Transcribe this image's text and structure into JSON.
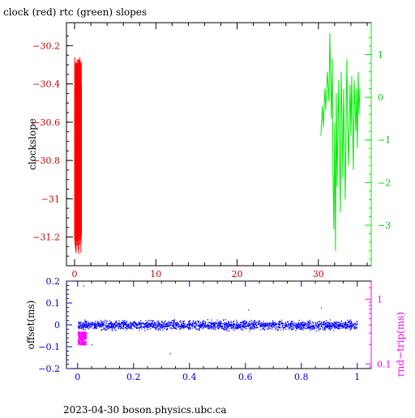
{
  "chart_data": [
    {
      "type": "line",
      "title": "clock (red) rtc (green) slopes",
      "xlabel": "",
      "ylabel": "clockslope",
      "xlim": [
        -1,
        36.5
      ],
      "ylim": [
        -31.35,
        -30.08
      ],
      "y2lim": [
        -3.95,
        1.75
      ],
      "x_ticks": [
        0,
        10,
        20,
        30
      ],
      "y_ticks": [
        -30.2,
        -30.4,
        -30.6,
        -30.8,
        -31,
        -31.2
      ],
      "y_tick_labels": [
        "−30.2",
        "−30.4",
        "−30.6",
        "−30.8",
        "−31",
        "−31.2"
      ],
      "y2_ticks": [
        1,
        0,
        -1,
        -2,
        -3
      ],
      "y2_tick_labels": [
        "1",
        "0",
        "−1",
        "−2",
        "−3"
      ],
      "grid": false,
      "series": [
        {
          "color": "#ff0000",
          "axis": "left",
          "x_range": [
            0,
            0.85
          ],
          "y_min": -31.29,
          "y_max": -30.26
        },
        {
          "color": "#00ee00",
          "axis": "right",
          "points": [
            [
              30.3,
              -0.9
            ],
            [
              30.5,
              -0.2
            ],
            [
              30.6,
              -0.7
            ],
            [
              30.8,
              0.2
            ],
            [
              30.9,
              -0.3
            ],
            [
              31.1,
              0.6
            ],
            [
              31.3,
              -0.1
            ],
            [
              31.4,
              1.5
            ],
            [
              31.6,
              -0.5
            ],
            [
              31.7,
              0.9
            ],
            [
              31.8,
              -1.8
            ],
            [
              31.9,
              -3.1
            ],
            [
              32.0,
              -0.6
            ],
            [
              32.1,
              -3.6
            ],
            [
              32.2,
              0.1
            ],
            [
              32.3,
              -2.1
            ],
            [
              32.5,
              0.4
            ],
            [
              32.6,
              -1.3
            ],
            [
              32.7,
              -2.7
            ],
            [
              32.8,
              0.6
            ],
            [
              32.9,
              -0.4
            ],
            [
              33.0,
              -1.9
            ],
            [
              33.1,
              0.2
            ],
            [
              33.2,
              -1.1
            ],
            [
              33.3,
              -2.4
            ],
            [
              33.5,
              0.9
            ],
            [
              33.6,
              -0.6
            ],
            [
              33.7,
              -1.6
            ],
            [
              33.9,
              0.3
            ],
            [
              34.0,
              -0.9
            ],
            [
              34.1,
              0.5
            ],
            [
              34.3,
              -1.7
            ],
            [
              34.4,
              0.4
            ],
            [
              34.6,
              -0.8
            ],
            [
              34.7,
              0.2
            ],
            [
              34.8,
              -1.2
            ],
            [
              34.9,
              0.6
            ],
            [
              35.0,
              -0.4
            ],
            [
              35.1,
              0.2
            ]
          ]
        }
      ]
    },
    {
      "type": "scatter",
      "xlabel": "",
      "ylabel": "offset(ms)",
      "y2label": "rnd−trip(ms)",
      "y2_scale": "log",
      "xlim": [
        -0.04,
        1.05
      ],
      "ylim": [
        -0.2,
        0.2
      ],
      "y2lim": [
        0.085,
        1.9
      ],
      "x_ticks": [
        0,
        0.2,
        0.4,
        0.6,
        0.8,
        1
      ],
      "x_tick_labels": [
        "0",
        "0.2",
        "0.4",
        "0.6",
        "0.8",
        "1"
      ],
      "y_ticks": [
        0.2,
        0.1,
        0,
        -0.1,
        -0.2
      ],
      "y_tick_labels": [
        "0.2",
        "0.1",
        "0",
        "−0.1",
        "−0.2"
      ],
      "y2_ticks": [
        1,
        0.1
      ],
      "y2_tick_labels": [
        "1",
        "0.1"
      ],
      "grid": false,
      "series": [
        {
          "color": "#0000ff",
          "axis": "left",
          "x_range": [
            0,
            1
          ],
          "y_center": 0,
          "y_spread": 0.03,
          "outliers": [
            [
              0.02,
              0.18
            ],
            [
              0.05,
              -0.09
            ],
            [
              0.33,
              -0.13
            ],
            [
              0.61,
              0.07
            ],
            [
              0.87,
              0.08
            ]
          ]
        },
        {
          "color": "#ff00ff",
          "axis": "right",
          "x_range": [
            0,
            0.03
          ],
          "y_min": 0.2,
          "y_max": 0.32
        }
      ]
    }
  ],
  "footer": "2023-04-30  boson.physics.ubc.ca"
}
